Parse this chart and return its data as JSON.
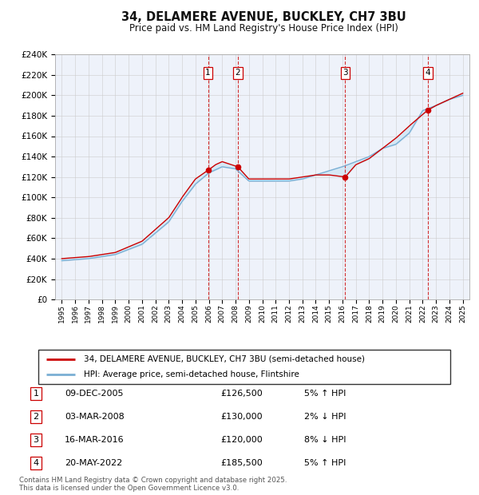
{
  "title1": "34, DELAMERE AVENUE, BUCKLEY, CH7 3BU",
  "title2": "Price paid vs. HM Land Registry's House Price Index (HPI)",
  "ylabel_ticks": [
    "£0",
    "£20K",
    "£40K",
    "£60K",
    "£80K",
    "£100K",
    "£120K",
    "£140K",
    "£160K",
    "£180K",
    "£200K",
    "£220K",
    "£240K"
  ],
  "ylim": [
    0,
    240000
  ],
  "xlim_start": 1994.5,
  "xlim_end": 2025.5,
  "sale_dates": [
    2005.94,
    2008.17,
    2016.21,
    2022.38
  ],
  "sale_prices": [
    126500,
    130000,
    120000,
    185500
  ],
  "sale_labels": [
    "1",
    "2",
    "3",
    "4"
  ],
  "sale_info": [
    [
      "09-DEC-2005",
      "£126,500",
      "5% ↑ HPI"
    ],
    [
      "03-MAR-2008",
      "£130,000",
      "2% ↓ HPI"
    ],
    [
      "16-MAR-2016",
      "£120,000",
      "8% ↓ HPI"
    ],
    [
      "20-MAY-2022",
      "£185,500",
      "5% ↑ HPI"
    ]
  ],
  "legend_line1": "34, DELAMERE AVENUE, BUCKLEY, CH7 3BU (semi-detached house)",
  "legend_line2": "HPI: Average price, semi-detached house, Flintshire",
  "footer_line1": "Contains HM Land Registry data © Crown copyright and database right 2025.",
  "footer_line2": "This data is licensed under the Open Government Licence v3.0.",
  "red_color": "#cc0000",
  "blue_color": "#7aafd4",
  "fill_color": "#d6e8f5",
  "bg_color": "#eef2fa",
  "grid_color": "#cccccc",
  "dashed_color": "#cc0000",
  "hpi_knots": [
    1995,
    1997,
    1999,
    2001,
    2003,
    2004,
    2005,
    2006,
    2007,
    2008,
    2009,
    2010,
    2011,
    2012,
    2013,
    2014,
    2015,
    2016,
    2017,
    2018,
    2019,
    2020,
    2021,
    2022,
    2023,
    2024,
    2025
  ],
  "hpi_vals": [
    38000,
    40000,
    44000,
    54000,
    76000,
    96000,
    113000,
    124000,
    130000,
    128000,
    116000,
    116000,
    116000,
    116000,
    118000,
    122000,
    126000,
    130000,
    135000,
    140000,
    148000,
    152000,
    163000,
    185000,
    190000,
    196000,
    200000
  ],
  "red_knots": [
    1995,
    1997,
    1999,
    2001,
    2003,
    2004,
    2005,
    2005.94,
    2006.5,
    2007,
    2008.17,
    2009,
    2010,
    2011,
    2012,
    2013,
    2014,
    2015,
    2016.21,
    2017,
    2018,
    2019,
    2020,
    2021,
    2022.38,
    2023,
    2024,
    2025
  ],
  "red_vals": [
    40000,
    42000,
    46000,
    57000,
    80000,
    100000,
    118000,
    126500,
    132000,
    135000,
    130000,
    118000,
    118000,
    118000,
    118000,
    120000,
    122000,
    122000,
    120000,
    132000,
    138000,
    148000,
    158000,
    170000,
    185500,
    190000,
    196000,
    202000
  ]
}
